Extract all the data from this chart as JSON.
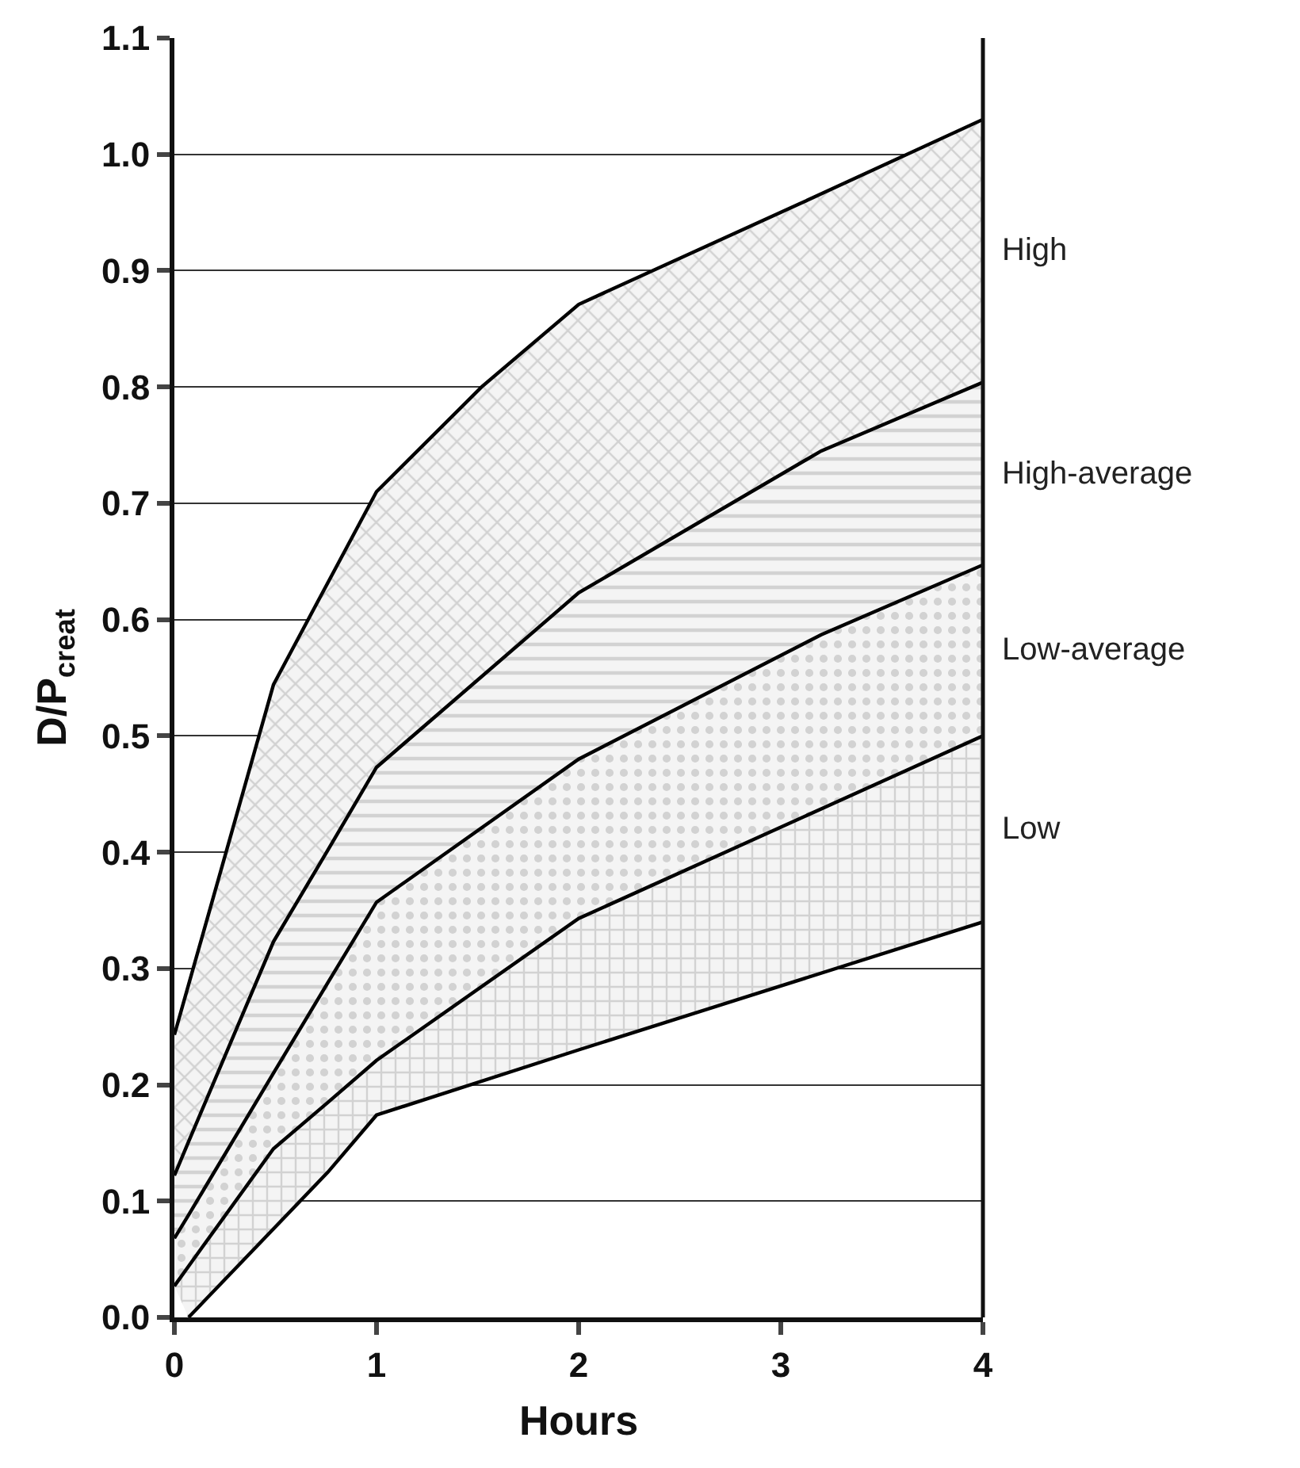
{
  "chart_data": {
    "type": "line",
    "xlabel": "Hours",
    "ylabel": "D/P$_{creat}$",
    "xlim": [
      0,
      4
    ],
    "xticks": [
      0,
      1,
      2,
      3,
      4
    ],
    "ylim": [
      0,
      1.1
    ],
    "yticks": [
      {
        "value": 0,
        "label": "0.0"
      },
      0.1,
      0.2,
      0.3,
      0.4,
      0.5,
      0.6,
      0.7,
      0.8,
      0.9,
      {
        "value": 1,
        "label": "1.0"
      },
      1.1
    ],
    "grid": "y",
    "legend": false,
    "marker": "none",
    "line_style": "solid",
    "series": [
      {
        "color": "#000000",
        "x": [
          0.07,
          0.76,
          1,
          2,
          4
        ],
        "values": [
          0,
          0.125,
          0.174,
          0.23,
          0.34
        ]
      },
      {
        "type": "area",
        "name": "Low",
        "color": "#000000",
        "x": [
          0,
          0.07,
          0.49,
          0.76,
          1,
          2,
          4
        ],
        "values": [
          0.027,
          0.044,
          0.145,
          0.185,
          0.221,
          0.343,
          0.5
        ]
      },
      {
        "type": "area",
        "name": "Low-average",
        "color": "#000000",
        "x": [
          0,
          0.07,
          0.49,
          0.76,
          1,
          2,
          3.2,
          4
        ],
        "values": [
          0.068,
          0.088,
          0.21,
          0.288,
          0.357,
          0.48,
          0.587,
          0.647
        ]
      },
      {
        "type": "area",
        "name": "High-average",
        "color": "#000000",
        "x": [
          0,
          0.07,
          0.49,
          0.76,
          1,
          2,
          3.2,
          4
        ],
        "values": [
          0.122,
          0.151,
          0.323,
          0.402,
          0.473,
          0.623,
          0.745,
          0.804
        ]
      },
      {
        "type": "area",
        "name": "High",
        "color": "#000000",
        "x": [
          0,
          0.07,
          0.49,
          0.76,
          1,
          1.52,
          2,
          3.2,
          4
        ],
        "values": [
          0.243,
          0.286,
          0.544,
          0.632,
          0.71,
          0.8,
          0.871,
          0.966,
          1.03
        ]
      }
    ]
  }
}
